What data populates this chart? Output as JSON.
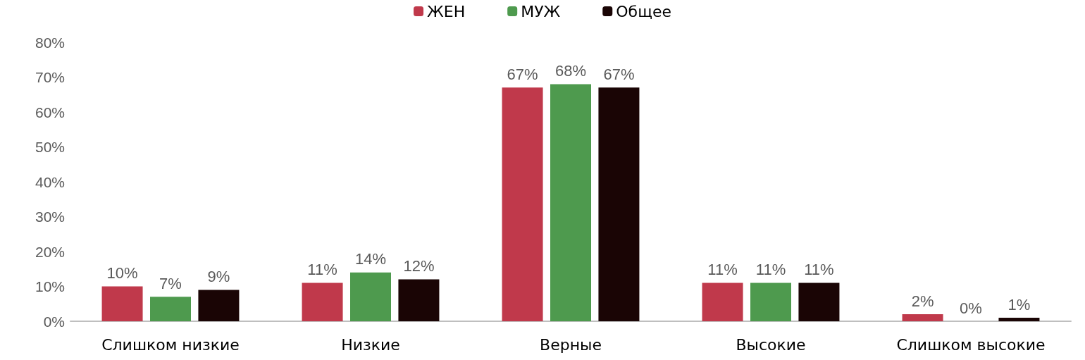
{
  "chart_data": {
    "type": "bar",
    "categories": [
      "Слишком низкие",
      "Низкие",
      "Верные",
      "Высокие",
      "Слишком высокие"
    ],
    "series": [
      {
        "name": "ЖЕН",
        "color": "#c0394b",
        "values": [
          10,
          11,
          67,
          11,
          2
        ],
        "value_labels": [
          "10%",
          "11%",
          "67%",
          "11%",
          "2%"
        ]
      },
      {
        "name": "МУЖ",
        "color": "#4e9a4e",
        "values": [
          7,
          14,
          68,
          11,
          0
        ],
        "value_labels": [
          "7%",
          "14%",
          "68%",
          "11%",
          "0%"
        ]
      },
      {
        "name": "Общее",
        "color": "#1a0505",
        "values": [
          9,
          12,
          67,
          11,
          1
        ],
        "value_labels": [
          "9%",
          "12%",
          "67%",
          "11%",
          "1%"
        ]
      }
    ],
    "ylim": [
      0,
      80
    ],
    "yticks": [
      {
        "value": 0,
        "label": "0%"
      },
      {
        "value": 10,
        "label": "10%"
      },
      {
        "value": 20,
        "label": "20%"
      },
      {
        "value": 30,
        "label": "30%"
      },
      {
        "value": 40,
        "label": "40%"
      },
      {
        "value": 50,
        "label": "50%"
      },
      {
        "value": 60,
        "label": "60%"
      },
      {
        "value": 70,
        "label": "70%"
      },
      {
        "value": 80,
        "label": "80%"
      }
    ],
    "grid": false,
    "legend": "top"
  }
}
